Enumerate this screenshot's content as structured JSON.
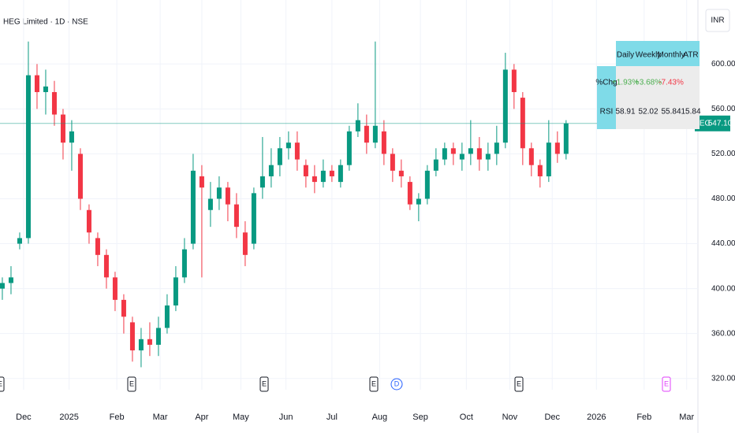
{
  "header": {
    "title": "HEG Limited · 1D · NSE",
    "currency": "INR"
  },
  "chart_data": {
    "type": "candlestick",
    "open": [
      400,
      405,
      440,
      445,
      590,
      575,
      575,
      555,
      530,
      520,
      470,
      445,
      430,
      410,
      390,
      370,
      345,
      355,
      350,
      365,
      385,
      410,
      440,
      500,
      470,
      480,
      490,
      475,
      450,
      440,
      490,
      500,
      510,
      525,
      530,
      510,
      500,
      495,
      505,
      495,
      510,
      540,
      545,
      530,
      540,
      520,
      505,
      495,
      475,
      480,
      505,
      515,
      525,
      515,
      520,
      525,
      515,
      520,
      530,
      595,
      570,
      525,
      510,
      500,
      530,
      520
    ],
    "high": [
      410,
      420,
      450,
      620,
      600,
      595,
      585,
      560,
      550,
      525,
      475,
      450,
      435,
      415,
      395,
      375,
      365,
      370,
      375,
      395,
      420,
      445,
      520,
      510,
      495,
      500,
      495,
      485,
      460,
      490,
      535,
      525,
      535,
      540,
      540,
      515,
      510,
      515,
      510,
      515,
      545,
      565,
      555,
      620,
      550,
      525,
      515,
      500,
      485,
      510,
      525,
      530,
      530,
      530,
      550,
      535,
      530,
      545,
      610,
      600,
      575,
      530,
      515,
      550,
      540,
      550
    ],
    "low": [
      390,
      395,
      435,
      440,
      560,
      555,
      545,
      515,
      505,
      470,
      440,
      420,
      400,
      380,
      360,
      335,
      330,
      340,
      340,
      360,
      380,
      405,
      435,
      410,
      455,
      470,
      460,
      445,
      420,
      435,
      480,
      490,
      500,
      515,
      505,
      490,
      485,
      490,
      495,
      490,
      505,
      535,
      520,
      525,
      510,
      495,
      490,
      470,
      460,
      475,
      500,
      510,
      510,
      505,
      510,
      505,
      505,
      510,
      525,
      560,
      510,
      500,
      490,
      495,
      512,
      515
    ],
    "close": [
      405,
      410,
      445,
      590,
      575,
      580,
      555,
      530,
      540,
      480,
      450,
      430,
      410,
      390,
      375,
      345,
      355,
      350,
      365,
      385,
      410,
      435,
      505,
      490,
      480,
      490,
      475,
      455,
      430,
      485,
      500,
      510,
      525,
      530,
      515,
      500,
      495,
      505,
      500,
      510,
      540,
      550,
      530,
      545,
      520,
      505,
      500,
      475,
      480,
      505,
      515,
      525,
      520,
      520,
      525,
      515,
      520,
      530,
      595,
      575,
      525,
      510,
      500,
      530,
      520,
      547.1
    ],
    "up_color": "#089981",
    "down_color": "#f23645",
    "xlim": [
      -0.27,
      80.2
    ],
    "xticks": [
      {
        "value": 2.45,
        "label": "Dec"
      },
      {
        "value": 7.7,
        "label": "2025"
      },
      {
        "value": 13.2,
        "label": "Feb"
      },
      {
        "value": 18.2,
        "label": "Mar"
      },
      {
        "value": 23,
        "label": "Apr"
      },
      {
        "value": 27.5,
        "label": "May"
      },
      {
        "value": 32.7,
        "label": "Jun"
      },
      {
        "value": 38,
        "label": "Jul"
      },
      {
        "value": 43.5,
        "label": "Aug"
      },
      {
        "value": 48.2,
        "label": "Sep"
      },
      {
        "value": 53.5,
        "label": "Oct"
      },
      {
        "value": 58.5,
        "label": "Nov"
      },
      {
        "value": 63.4,
        "label": "Dec"
      },
      {
        "value": 68.5,
        "label": "2026"
      },
      {
        "value": 74,
        "label": "Feb"
      },
      {
        "value": 78.9,
        "label": "Mar"
      }
    ],
    "ylim": [
      310,
      657
    ],
    "yticks": [
      {
        "value": 320,
        "label": "320.00"
      },
      {
        "value": 360,
        "label": "360.00"
      },
      {
        "value": 400,
        "label": "400.00"
      },
      {
        "value": 440,
        "label": "440.00"
      },
      {
        "value": 480,
        "label": "480.00"
      },
      {
        "value": 520,
        "label": "520.00"
      },
      {
        "value": 560,
        "label": "560.00"
      },
      {
        "value": 600,
        "label": "600.00"
      }
    ],
    "grid": true,
    "symbol": "HEG",
    "last_price": {
      "value": 547.1,
      "label": "547.10"
    },
    "events": [
      "E",
      "E",
      "E",
      "E",
      "D",
      "E",
      "E"
    ]
  },
  "table": {
    "header": [
      "Daily",
      "Weekly",
      "Monthly",
      "ATR"
    ],
    "rows": [
      [
        "%Chg",
        "+1.93%",
        "+3.68%",
        "-7.43%"
      ],
      [
        "RSI",
        "58.91",
        "52.02",
        "55.84",
        "15.84"
      ]
    ]
  }
}
